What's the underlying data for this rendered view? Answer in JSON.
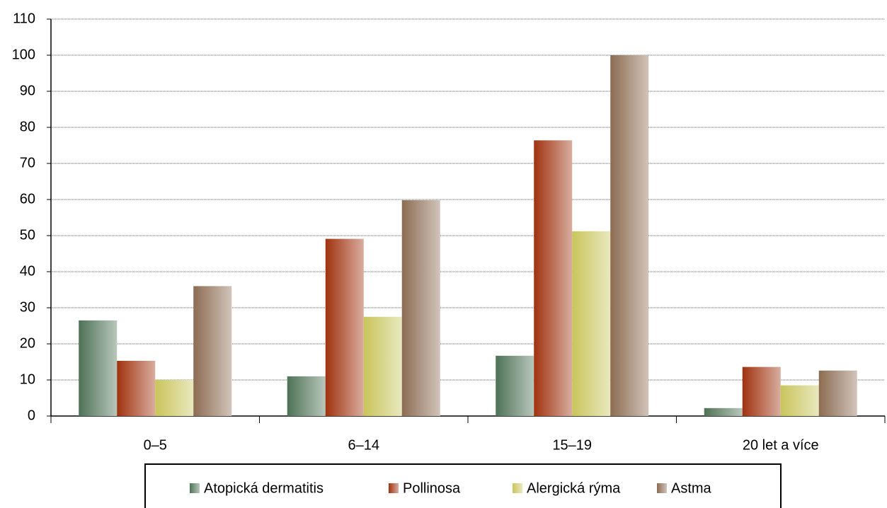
{
  "chart_data": {
    "type": "bar",
    "categories": [
      "0–5",
      "6–14",
      "15–19",
      "20 let a více"
    ],
    "series": [
      {
        "name": "Atopická dermatitis",
        "color": "#4e7256",
        "values": [
          26.5,
          11,
          16.7,
          2.2
        ]
      },
      {
        "name": "Pollinosa",
        "color": "#a0320f",
        "values": [
          15.3,
          49.1,
          76.4,
          13.6
        ]
      },
      {
        "name": "Alergická rýma",
        "color": "#c9c55c",
        "values": [
          10,
          27.5,
          51.2,
          8.5
        ]
      },
      {
        "name": "Astma",
        "color": "#8c6c52",
        "values": [
          36,
          59.8,
          100,
          12.6
        ]
      }
    ],
    "ylim": [
      0,
      110
    ],
    "yticks": [
      0,
      10,
      20,
      30,
      40,
      50,
      60,
      70,
      80,
      90,
      100,
      110
    ],
    "grid": true
  }
}
